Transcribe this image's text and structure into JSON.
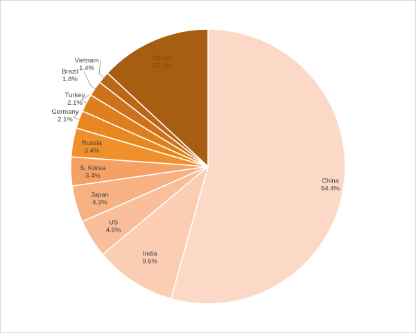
{
  "chart_data": {
    "type": "pie",
    "title": "",
    "start_angle_deg": 0,
    "direction": "clockwise",
    "legend": "none",
    "slices": [
      {
        "label": "China",
        "value": 54.4,
        "value_label": "54.4%",
        "color": "#fcd9c7"
      },
      {
        "label": "India",
        "value": 9.6,
        "value_label": "9.6%",
        "color": "#fbcdb3"
      },
      {
        "label": "US",
        "value": 4.5,
        "value_label": "4.5%",
        "color": "#f9bf9a"
      },
      {
        "label": "Japan",
        "value": 4.3,
        "value_label": "4.3%",
        "color": "#f7b183"
      },
      {
        "label": "S. Korea",
        "value": 3.4,
        "value_label": "3.4%",
        "color": "#f5a065"
      },
      {
        "label": "Russia",
        "value": 3.4,
        "value_label": "3.4%",
        "color": "#f0902a"
      },
      {
        "label": "Germany",
        "value": 2.1,
        "value_label": "2.1%",
        "color": "#e8871f"
      },
      {
        "label": "Turkey",
        "value": 2.1,
        "value_label": "2.1%",
        "color": "#de7f1e"
      },
      {
        "label": "Brazil",
        "value": 1.8,
        "value_label": "1.8%",
        "color": "#cd721a"
      },
      {
        "label": "Vietnam",
        "value": 1.4,
        "value_label": "1.4%",
        "color": "#bb6816"
      },
      {
        "label": "Others",
        "value": 13.1,
        "value_label": "13.1%",
        "color": "#a75e13"
      }
    ]
  }
}
